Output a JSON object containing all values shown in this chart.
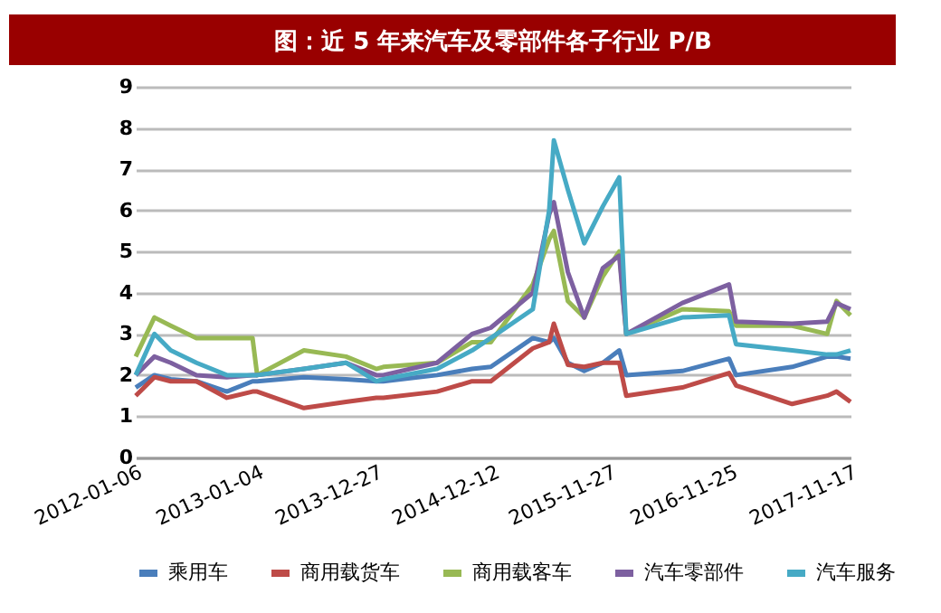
{
  "chart_data": {
    "type": "line",
    "title": "图：近 5 年来汽车及零部件各子行业 P/B",
    "x": [
      "2012-01-06",
      "2012-03-02",
      "2012-04-20",
      "2012-07-06",
      "2012-10-05",
      "2012-12-21",
      "2013-01-04",
      "2013-05-24",
      "2013-09-27",
      "2013-12-27",
      "2014-01-17",
      "2014-06-27",
      "2014-10-10",
      "2014-12-05",
      "2015-04-10",
      "2015-05-29",
      "2015-06-12",
      "2015-07-24",
      "2015-09-11",
      "2015-11-06",
      "2015-12-25",
      "2016-01-15",
      "2016-07-01",
      "2016-11-18",
      "2016-12-09",
      "2017-05-26",
      "2017-09-08",
      "2017-10-06",
      "2017-11-17"
    ],
    "series": [
      {
        "name": "乘用车",
        "color": "#4a7ebb",
        "values": [
          1.7,
          2.0,
          1.9,
          1.85,
          1.6,
          1.85,
          1.85,
          1.95,
          1.9,
          1.85,
          1.85,
          2.0,
          2.15,
          2.2,
          2.9,
          2.8,
          2.9,
          2.3,
          2.1,
          2.3,
          2.6,
          2.0,
          2.1,
          2.4,
          2.0,
          2.2,
          2.45,
          2.45,
          2.4
        ]
      },
      {
        "name": "商用载货车",
        "color": "#be4b48",
        "values": [
          1.5,
          1.95,
          1.85,
          1.85,
          1.45,
          1.6,
          1.6,
          1.2,
          1.35,
          1.45,
          1.45,
          1.6,
          1.85,
          1.85,
          2.65,
          2.8,
          3.25,
          2.25,
          2.2,
          2.3,
          2.3,
          1.5,
          1.7,
          2.05,
          1.75,
          1.3,
          1.5,
          1.6,
          1.35
        ]
      },
      {
        "name": "商用载客车",
        "color": "#98b954",
        "values": [
          2.45,
          3.4,
          3.2,
          2.9,
          2.9,
          2.9,
          2.0,
          2.6,
          2.45,
          2.15,
          2.2,
          2.3,
          2.8,
          2.8,
          4.2,
          5.3,
          5.5,
          3.8,
          3.4,
          4.4,
          5.0,
          3.0,
          3.6,
          3.55,
          3.2,
          3.2,
          3.0,
          3.8,
          3.45
        ]
      },
      {
        "name": "汽车零部件",
        "color": "#7d60a0",
        "values": [
          2.0,
          2.45,
          2.3,
          2.0,
          1.95,
          2.0,
          2.0,
          2.15,
          2.3,
          2.0,
          2.0,
          2.3,
          3.0,
          3.15,
          4.0,
          5.9,
          6.2,
          4.5,
          3.4,
          4.6,
          4.9,
          3.0,
          3.75,
          4.2,
          3.3,
          3.25,
          3.3,
          3.75,
          3.6
        ]
      },
      {
        "name": "汽车服务",
        "color": "#46aac5",
        "values": [
          2.0,
          3.0,
          2.6,
          2.3,
          2.0,
          2.0,
          2.0,
          2.15,
          2.3,
          1.85,
          1.9,
          2.15,
          2.6,
          2.9,
          3.6,
          6.0,
          7.7,
          6.5,
          5.2,
          6.1,
          6.8,
          3.0,
          3.4,
          3.45,
          2.75,
          2.6,
          2.5,
          2.5,
          2.6
        ]
      }
    ],
    "xlim": [
      "2012-01-06",
      "2017-11-17"
    ],
    "xticks": [
      "2012-01-06",
      "2013-01-04",
      "2013-12-27",
      "2014-12-12",
      "2015-11-27",
      "2016-11-25",
      "2017-11-17"
    ],
    "ylim": [
      0,
      9
    ],
    "yticks": [
      0,
      1,
      2,
      3,
      4,
      5,
      6,
      7,
      8,
      9
    ],
    "grid": "y",
    "legend": "bottom",
    "marker": "none",
    "line_style": "solid"
  }
}
